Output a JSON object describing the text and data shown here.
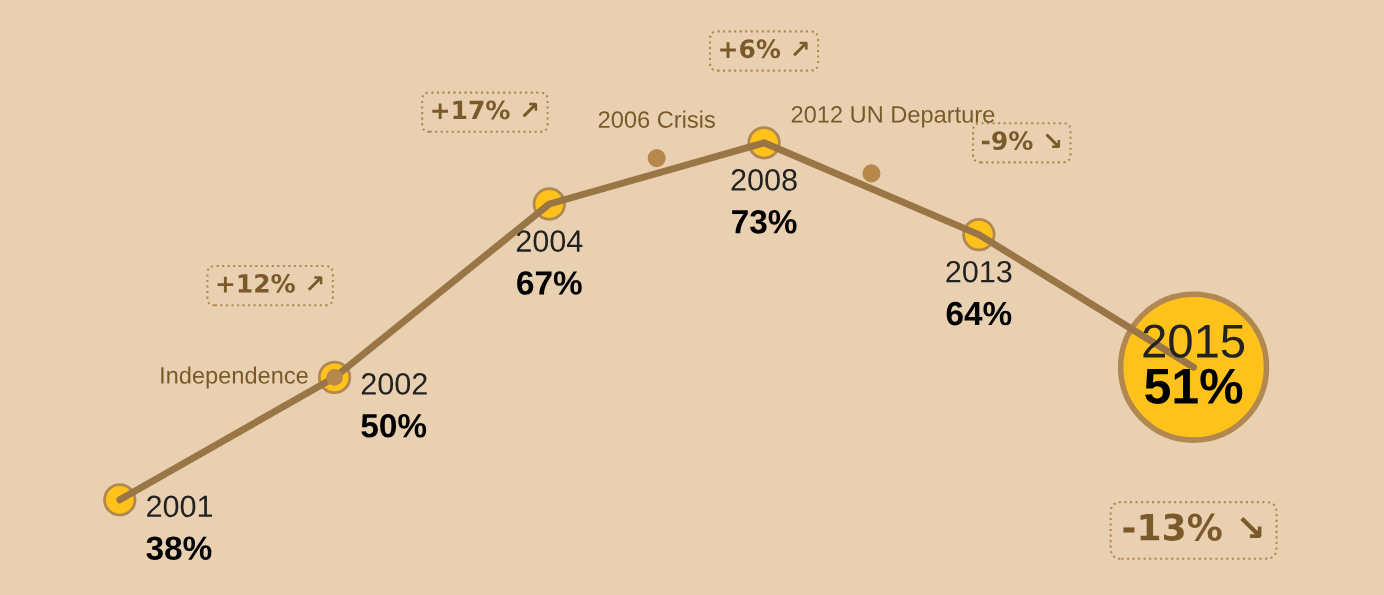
{
  "chart_data": {
    "type": "line",
    "categories": [
      "2001",
      "2002",
      "2004",
      "2008",
      "2013",
      "2015"
    ],
    "series": [
      {
        "color": "#9a7545",
        "values": [
          38,
          50,
          67,
          73,
          64,
          51
        ],
        "value_labels": [
          "38%",
          "50%",
          "67%",
          "73%",
          "64%",
          "51%"
        ]
      }
    ],
    "marker": "circle",
    "annotations": [
      "+12% ↗",
      "+17% ↗",
      "+6% ↗",
      "-9% ↘",
      "-13% ↘",
      "Independence",
      "2006 Crisis",
      "2012 UN Departure"
    ],
    "line_style": "solid"
  }
}
